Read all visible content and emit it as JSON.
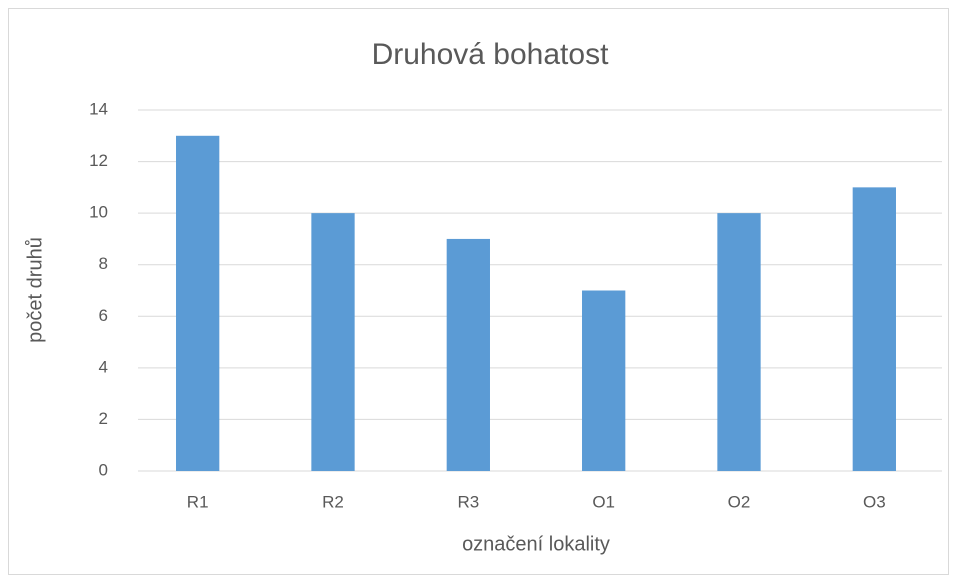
{
  "chart_data": {
    "type": "bar",
    "title": "Druhová bohatost",
    "x_label": "označení lokality",
    "y_label": "počet druhů",
    "categories": [
      "R1",
      "R2",
      "R3",
      "O1",
      "O2",
      "O3"
    ],
    "values": [
      13,
      10,
      9,
      7,
      10,
      11
    ],
    "color": "#5b9bd5",
    "ylim": [
      0,
      14
    ],
    "yticks": [
      0,
      2,
      4,
      6,
      8,
      10,
      12,
      14
    ],
    "grid": true
  }
}
